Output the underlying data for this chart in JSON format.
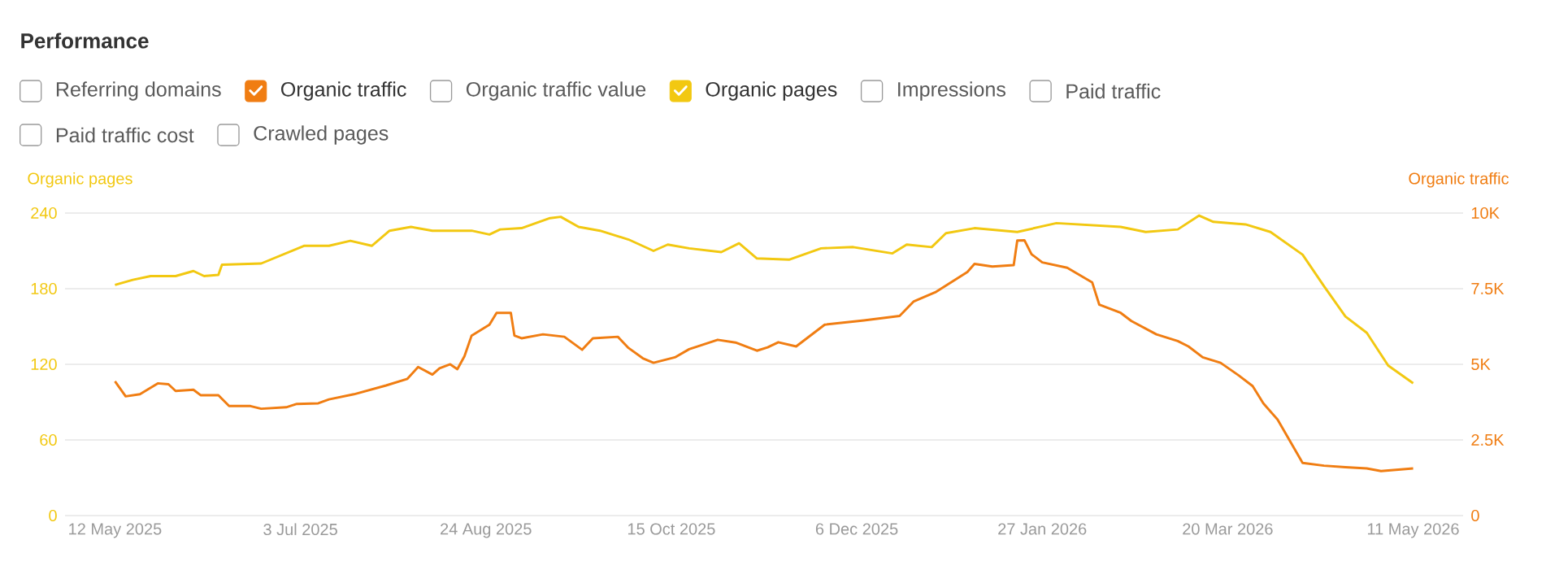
{
  "chart_data": {
    "type": "line",
    "title": "Performance",
    "ylabel": "Organic pages",
    "y2label": "Organic traffic",
    "annotations": [
      "Referring domains",
      "Organic traffic value",
      "Impressions",
      "Paid traffic",
      "Paid traffic cost",
      "Crawled pages"
    ],
    "legend": "top",
    "grid": "y",
    "xlim": [
      "2025-04-28",
      "2026-05-25"
    ],
    "xticks": [
      {
        "value": "2025-05-12",
        "label": "12 May 2025"
      },
      {
        "value": "2025-07-03",
        "label": "3 Jul 2025"
      },
      {
        "value": "2025-08-24",
        "label": "24 Aug 2025"
      },
      {
        "value": "2025-10-15",
        "label": "15 Oct 2025"
      },
      {
        "value": "2025-12-06",
        "label": "6 Dec 2025"
      },
      {
        "value": "2026-01-27",
        "label": "27 Jan 2026"
      },
      {
        "value": "2026-03-20",
        "label": "20 Mar 2026"
      },
      {
        "value": "2026-05-11",
        "label": "11 May 2026"
      }
    ],
    "ylim": [
      0,
      240
    ],
    "yticks": [
      0,
      60,
      120,
      180,
      240
    ],
    "y2lim": [
      0,
      10000
    ],
    "y2ticks": [
      0,
      {
        "value": 2500,
        "label": "2.5K"
      },
      {
        "value": 5000,
        "label": "5K"
      },
      {
        "value": 7500,
        "label": "7.5K"
      },
      {
        "value": 10000,
        "label": "10K"
      }
    ],
    "series": [
      {
        "name": "Organic traffic",
        "color": "#f07d12",
        "axis": "y2",
        "x": [
          "2025-05-12",
          "2025-05-15",
          "2025-05-19",
          "2025-05-24",
          "2025-05-27",
          "2025-05-29",
          "2025-06-03",
          "2025-06-05",
          "2025-06-10",
          "2025-06-13",
          "2025-06-19",
          "2025-06-22",
          "2025-06-29",
          "2025-07-02",
          "2025-07-08",
          "2025-07-11",
          "2025-07-18",
          "2025-07-27",
          "2025-08-02",
          "2025-08-05",
          "2025-08-09",
          "2025-08-11",
          "2025-08-14",
          "2025-08-16",
          "2025-08-18",
          "2025-08-20",
          "2025-08-25",
          "2025-08-27",
          "2025-08-31",
          "2025-09-01",
          "2025-09-03",
          "2025-09-09",
          "2025-09-15",
          "2025-09-20",
          "2025-09-23",
          "2025-09-30",
          "2025-10-03",
          "2025-10-07",
          "2025-10-10",
          "2025-10-16",
          "2025-10-20",
          "2025-10-28",
          "2025-11-02",
          "2025-11-08",
          "2025-11-11",
          "2025-11-14",
          "2025-11-19",
          "2025-11-27",
          "2025-12-08",
          "2025-12-18",
          "2025-12-22",
          "2025-12-28",
          "2026-01-06",
          "2026-01-08",
          "2026-01-13",
          "2026-01-19",
          "2026-01-20",
          "2026-01-22",
          "2026-01-24",
          "2026-01-27",
          "2026-02-03",
          "2026-02-10",
          "2026-02-12",
          "2026-02-18",
          "2026-02-21",
          "2026-02-28",
          "2026-03-06",
          "2026-03-09",
          "2026-03-13",
          "2026-03-18",
          "2026-03-23",
          "2026-03-27",
          "2026-03-30",
          "2026-04-03",
          "2026-04-10",
          "2026-04-16",
          "2026-04-22",
          "2026-04-28",
          "2026-05-02",
          "2026-05-11"
        ],
        "values": [
          4440,
          3940,
          4010,
          4370,
          4340,
          4120,
          4160,
          3980,
          3980,
          3620,
          3620,
          3530,
          3580,
          3690,
          3710,
          3840,
          4010,
          4300,
          4520,
          4910,
          4660,
          4870,
          5000,
          4840,
          5270,
          5950,
          6310,
          6700,
          6700,
          5950,
          5860,
          5990,
          5910,
          5480,
          5860,
          5910,
          5540,
          5200,
          5050,
          5230,
          5500,
          5810,
          5720,
          5450,
          5560,
          5730,
          5590,
          6310,
          6450,
          6600,
          7080,
          7380,
          8050,
          8320,
          8230,
          8280,
          9090,
          9100,
          8640,
          8370,
          8190,
          7710,
          6970,
          6700,
          6430,
          5990,
          5770,
          5590,
          5230,
          5050,
          4640,
          4280,
          3710,
          3170,
          1740,
          1650,
          1600,
          1560,
          1470,
          1560
        ]
      },
      {
        "name": "Organic pages",
        "color": "#f2c811",
        "x": [
          "2025-05-12",
          "2025-05-17",
          "2025-05-22",
          "2025-05-29",
          "2025-06-03",
          "2025-06-06",
          "2025-06-10",
          "2025-06-11",
          "2025-06-22",
          "2025-06-28",
          "2025-07-04",
          "2025-07-11",
          "2025-07-17",
          "2025-07-23",
          "2025-07-28",
          "2025-08-03",
          "2025-08-09",
          "2025-08-20",
          "2025-08-25",
          "2025-08-28",
          "2025-09-03",
          "2025-09-11",
          "2025-09-14",
          "2025-09-19",
          "2025-09-25",
          "2025-10-03",
          "2025-10-10",
          "2025-10-14",
          "2025-10-20",
          "2025-10-29",
          "2025-11-03",
          "2025-11-08",
          "2025-11-17",
          "2025-11-26",
          "2025-12-05",
          "2025-12-16",
          "2025-12-20",
          "2025-12-27",
          "2025-12-31",
          "2026-01-08",
          "2026-01-20",
          "2026-01-31",
          "2026-02-18",
          "2026-02-25",
          "2026-03-06",
          "2026-03-12",
          "2026-03-16",
          "2026-03-25",
          "2026-04-01",
          "2026-04-10",
          "2026-04-16",
          "2026-04-22",
          "2026-04-28",
          "2026-05-04",
          "2026-05-11"
        ],
        "values": [
          183,
          187,
          190,
          190,
          194,
          190,
          191,
          199,
          200,
          207,
          214,
          214,
          218,
          214,
          226,
          229,
          226,
          226,
          223,
          227,
          228,
          236,
          237,
          229,
          226,
          219,
          210,
          215,
          212,
          209,
          216,
          204,
          203,
          212,
          213,
          208,
          215,
          213,
          224,
          228,
          225,
          232,
          229,
          225,
          227,
          238,
          233,
          231,
          225,
          207,
          182,
          158,
          145,
          119,
          105
        ]
      }
    ]
  }
}
